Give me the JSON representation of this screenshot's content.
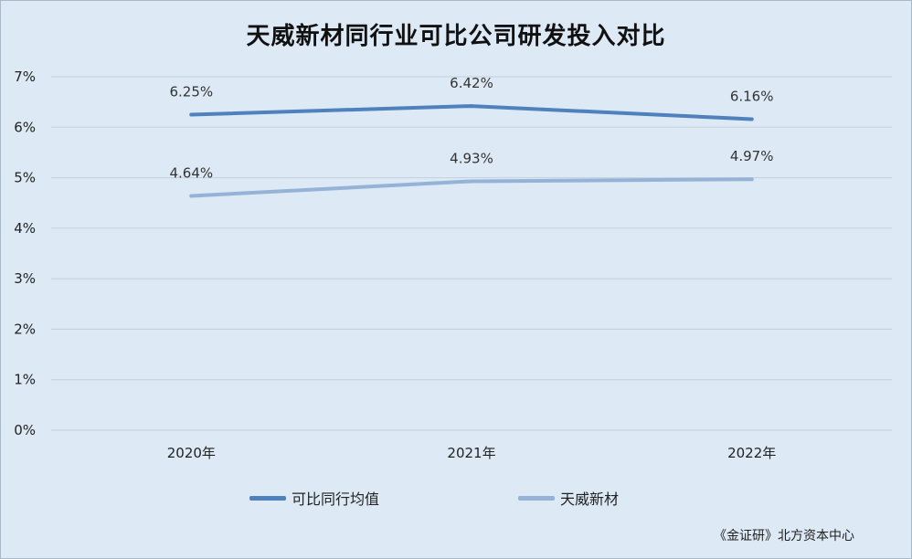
{
  "title": "天威新材同行业可比公司研发投入对比",
  "source": "《金证研》北方资本中心",
  "chart_data": {
    "type": "line",
    "title": "天威新材同行业可比公司研发投入对比",
    "categories": [
      "2020年",
      "2021年",
      "2022年"
    ],
    "y_ticks": [
      "0%",
      "1%",
      "2%",
      "3%",
      "4%",
      "5%",
      "6%",
      "7%"
    ],
    "ylim": [
      0,
      7
    ],
    "grid": true,
    "legend_position": "bottom",
    "series": [
      {
        "name": "可比同行均值",
        "values": [
          6.25,
          6.42,
          6.16
        ],
        "labels": [
          "6.25%",
          "6.42%",
          "6.16%"
        ],
        "color": "#4f81bd"
      },
      {
        "name": "天威新材",
        "values": [
          4.64,
          4.93,
          4.97
        ],
        "labels": [
          "4.64%",
          "4.93%",
          "4.97%"
        ],
        "color": "#95b3d7"
      }
    ]
  }
}
